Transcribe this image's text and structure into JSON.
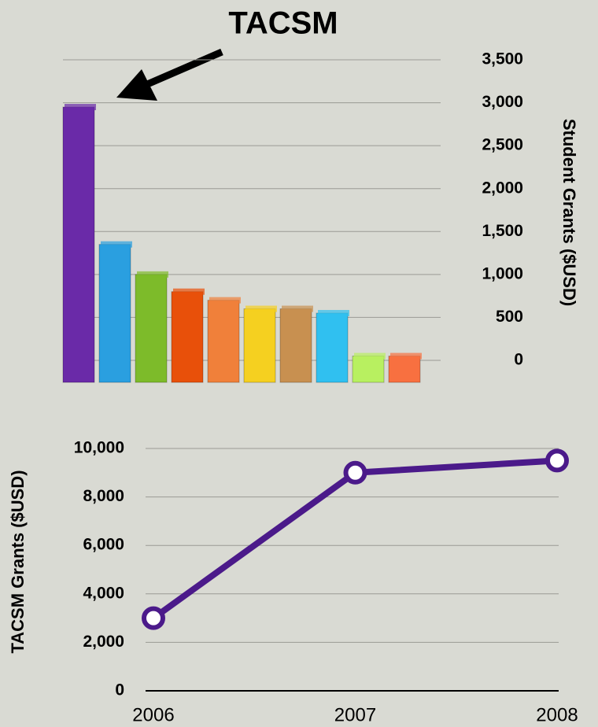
{
  "chart_data": [
    {
      "type": "bar",
      "annotation": "TACSM",
      "ylabel": "Student Grants ($USD)",
      "categories": [
        null,
        null,
        null,
        null,
        null,
        null,
        null,
        null,
        null,
        null
      ],
      "values": [
        2950,
        1350,
        1000,
        800,
        700,
        600,
        600,
        550,
        50,
        50
      ],
      "colors": [
        "#6a2aa8",
        "#2a9fe0",
        "#7dbb2a",
        "#e8500a",
        "#f0803a",
        "#f5d020",
        "#c89050",
        "#30c0f0",
        "#b8f060",
        "#f87040"
      ],
      "ylim": [
        0,
        3500
      ],
      "yticks": [
        0,
        500,
        {
          "value": 1000,
          "label": "1,000"
        },
        {
          "value": 1500,
          "label": "1,500"
        },
        {
          "value": 2000,
          "label": "2,000"
        },
        {
          "value": 2500,
          "label": "2,500"
        },
        {
          "value": 3000,
          "label": "3,000"
        },
        {
          "value": 3500,
          "label": "3,500"
        }
      ],
      "grid": true
    },
    {
      "type": "line",
      "ylabel": "TACSM Grants ($USD)",
      "categories": [
        "2006",
        "2007",
        "2008"
      ],
      "values": [
        3000,
        9000,
        9500
      ],
      "color": "#4b1a8a",
      "ylim": [
        0,
        10000
      ],
      "yticks": [
        0,
        {
          "value": 2000,
          "label": "2,000"
        },
        {
          "value": 4000,
          "label": "4,000"
        },
        {
          "value": 6000,
          "label": "6,000"
        },
        {
          "value": 8000,
          "label": "8,000"
        },
        {
          "value": 10000,
          "label": "10,000"
        }
      ],
      "grid": true
    }
  ]
}
